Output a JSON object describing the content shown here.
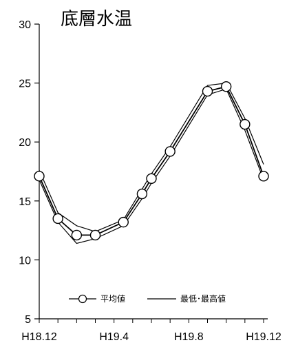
{
  "chart_data": {
    "type": "line",
    "title": "底層水温",
    "xlabel": "",
    "ylabel": "",
    "ylim": [
      5,
      30
    ],
    "yticks": [
      5,
      10,
      15,
      20,
      25,
      30
    ],
    "x_tick_labels": [
      "H18.12",
      "H19.4",
      "H19.8",
      "H19.12"
    ],
    "x_tick_positions": [
      0,
      4,
      8,
      12
    ],
    "xlim": [
      0,
      12
    ],
    "series": [
      {
        "name": "平均値",
        "marker": "circle",
        "x": [
          0,
          1,
          2,
          3,
          4.5,
          5.5,
          6,
          7,
          9,
          10,
          11,
          12
        ],
        "values": [
          17.1,
          13.5,
          12.1,
          12.1,
          13.2,
          15.6,
          16.9,
          19.2,
          24.3,
          24.7,
          21.5,
          17.1
        ]
      },
      {
        "name": "最低",
        "x": [
          0,
          1,
          2,
          3,
          4.5,
          5.5,
          6,
          7,
          9,
          10,
          11,
          12
        ],
        "values": [
          16.8,
          13.2,
          11.4,
          11.8,
          12.9,
          15.2,
          16.5,
          18.8,
          24.0,
          24.5,
          21.0,
          16.8
        ]
      },
      {
        "name": "最高",
        "x": [
          0,
          1,
          2,
          3,
          4.5,
          5.5,
          6,
          7,
          9,
          10,
          11,
          12
        ],
        "values": [
          17.6,
          14.0,
          12.9,
          12.4,
          13.4,
          16.0,
          17.3,
          19.6,
          24.8,
          25.0,
          22.0,
          18.1
        ]
      }
    ],
    "legend": {
      "placement": "bottom",
      "mean_label": "平均値",
      "range_label": "最低･最高値"
    }
  }
}
